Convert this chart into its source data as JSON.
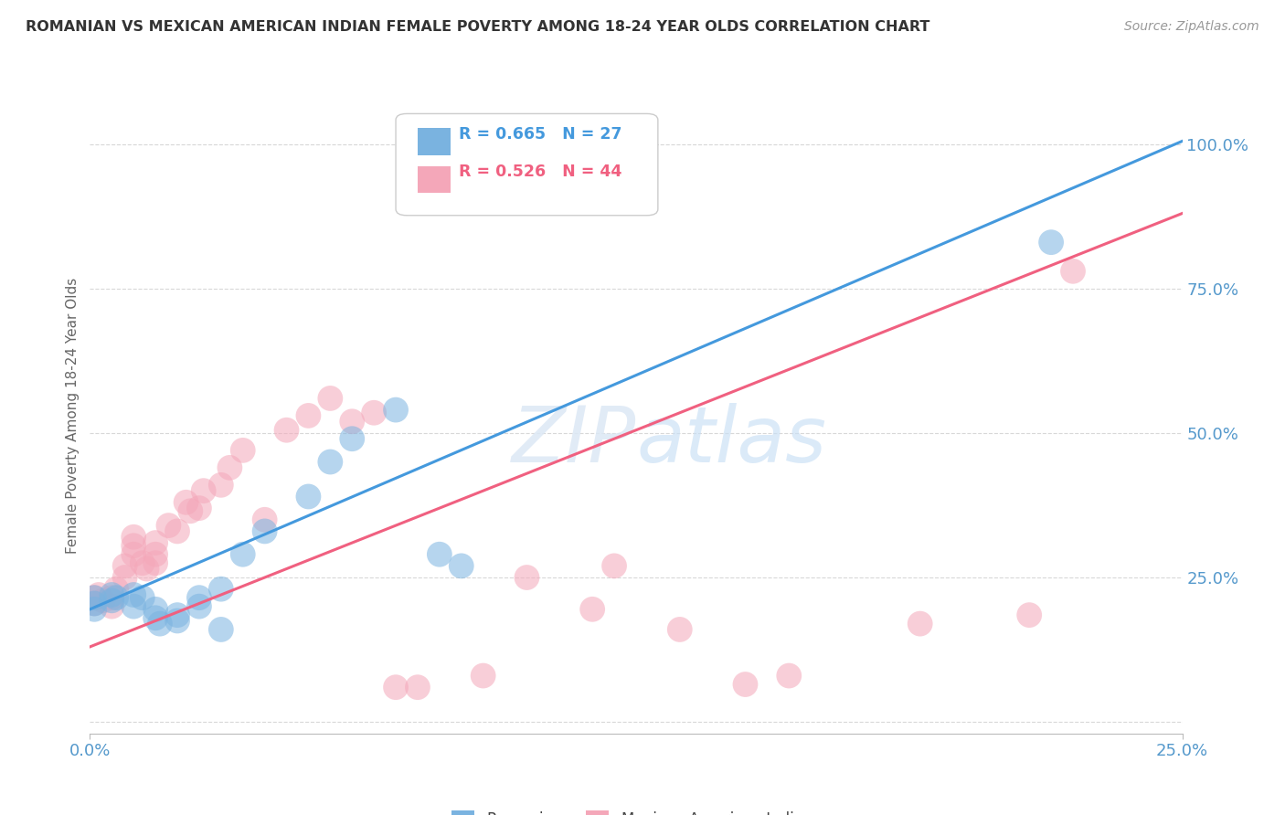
{
  "title": "ROMANIAN VS MEXICAN AMERICAN INDIAN FEMALE POVERTY AMONG 18-24 YEAR OLDS CORRELATION CHART",
  "source": "Source: ZipAtlas.com",
  "ylabel": "Female Poverty Among 18-24 Year Olds",
  "xlim": [
    0.0,
    0.25
  ],
  "ylim": [
    -0.02,
    1.08
  ],
  "ytick_positions": [
    0.0,
    0.25,
    0.5,
    0.75,
    1.0
  ],
  "yticklabels_right": [
    "",
    "25.0%",
    "50.0%",
    "75.0%",
    "100.0%"
  ],
  "background_color": "#ffffff",
  "grid_color": "#d8d8d8",
  "watermark": "ZIPatlas",
  "romanian_color": "#7ab3e0",
  "mexican_color": "#f4a7b9",
  "romanian_line_color": "#4499dd",
  "mexican_line_color": "#f06080",
  "R_romanian": 0.665,
  "N_romanian": 27,
  "R_mexican": 0.526,
  "N_mexican": 44,
  "romanian_scatter": [
    [
      0.001,
      0.215
    ],
    [
      0.001,
      0.205
    ],
    [
      0.001,
      0.195
    ],
    [
      0.005,
      0.22
    ],
    [
      0.005,
      0.21
    ],
    [
      0.006,
      0.215
    ],
    [
      0.01,
      0.22
    ],
    [
      0.01,
      0.2
    ],
    [
      0.012,
      0.215
    ],
    [
      0.015,
      0.195
    ],
    [
      0.015,
      0.18
    ],
    [
      0.016,
      0.17
    ],
    [
      0.02,
      0.185
    ],
    [
      0.02,
      0.175
    ],
    [
      0.025,
      0.215
    ],
    [
      0.025,
      0.2
    ],
    [
      0.03,
      0.23
    ],
    [
      0.03,
      0.16
    ],
    [
      0.035,
      0.29
    ],
    [
      0.04,
      0.33
    ],
    [
      0.05,
      0.39
    ],
    [
      0.055,
      0.45
    ],
    [
      0.06,
      0.49
    ],
    [
      0.07,
      0.54
    ],
    [
      0.08,
      0.29
    ],
    [
      0.085,
      0.27
    ],
    [
      0.22,
      0.83
    ]
  ],
  "mexican_scatter": [
    [
      0.001,
      0.215
    ],
    [
      0.001,
      0.205
    ],
    [
      0.002,
      0.22
    ],
    [
      0.003,
      0.21
    ],
    [
      0.005,
      0.215
    ],
    [
      0.005,
      0.2
    ],
    [
      0.006,
      0.23
    ],
    [
      0.008,
      0.27
    ],
    [
      0.008,
      0.25
    ],
    [
      0.01,
      0.32
    ],
    [
      0.01,
      0.305
    ],
    [
      0.01,
      0.29
    ],
    [
      0.012,
      0.275
    ],
    [
      0.013,
      0.265
    ],
    [
      0.015,
      0.31
    ],
    [
      0.015,
      0.29
    ],
    [
      0.015,
      0.275
    ],
    [
      0.018,
      0.34
    ],
    [
      0.02,
      0.33
    ],
    [
      0.022,
      0.38
    ],
    [
      0.023,
      0.365
    ],
    [
      0.025,
      0.37
    ],
    [
      0.026,
      0.4
    ],
    [
      0.03,
      0.41
    ],
    [
      0.032,
      0.44
    ],
    [
      0.035,
      0.47
    ],
    [
      0.04,
      0.35
    ],
    [
      0.045,
      0.505
    ],
    [
      0.05,
      0.53
    ],
    [
      0.055,
      0.56
    ],
    [
      0.06,
      0.52
    ],
    [
      0.065,
      0.535
    ],
    [
      0.07,
      0.06
    ],
    [
      0.075,
      0.06
    ],
    [
      0.09,
      0.08
    ],
    [
      0.1,
      0.25
    ],
    [
      0.115,
      0.195
    ],
    [
      0.12,
      0.27
    ],
    [
      0.135,
      0.16
    ],
    [
      0.15,
      0.065
    ],
    [
      0.16,
      0.08
    ],
    [
      0.19,
      0.17
    ],
    [
      0.215,
      0.185
    ],
    [
      0.225,
      0.78
    ]
  ]
}
